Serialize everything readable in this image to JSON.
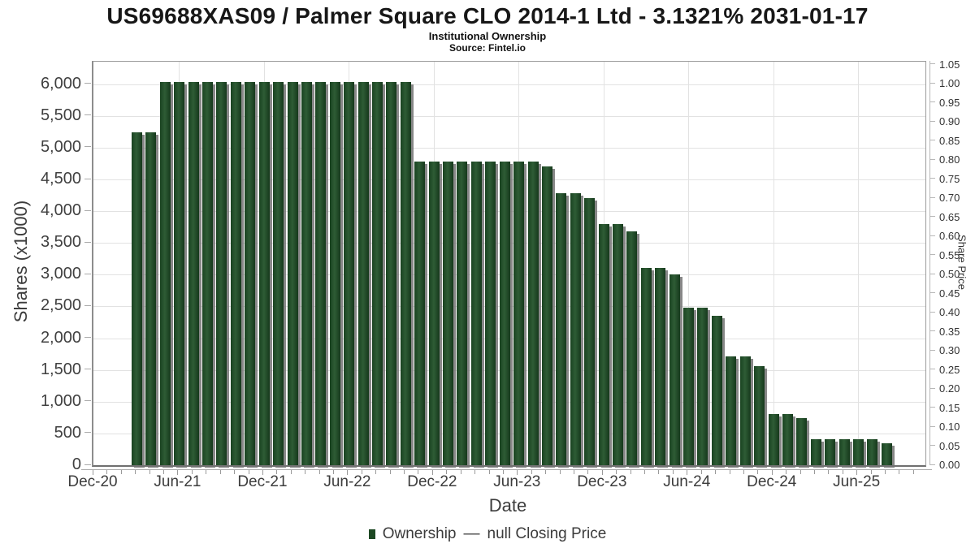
{
  "header": {
    "title": "US69688XAS09 / Palmer Square CLO 2014-1 Ltd - 3.1321% 2031-01-17",
    "subtitle": "Institutional Ownership",
    "source": "Source: Fintel.io"
  },
  "chart_data": {
    "type": "bar",
    "title": "US69688XAS09 / Palmer Square CLO 2014-1 Ltd - 3.1321% 2031-01-17",
    "subtitle": "Institutional Ownership",
    "series": [
      {
        "name": "Ownership",
        "x": [
          "Mar-21",
          "Apr-21",
          "May-21",
          "Jun-21",
          "Jul-21",
          "Aug-21",
          "Sep-21",
          "Oct-21",
          "Nov-21",
          "Dec-21",
          "Jan-22",
          "Feb-22",
          "Mar-22",
          "Apr-22",
          "May-22",
          "Jun-22",
          "Jul-22",
          "Aug-22",
          "Sep-22",
          "Oct-22",
          "Nov-22",
          "Dec-22",
          "Jan-23",
          "Feb-23",
          "Mar-23",
          "Apr-23",
          "May-23",
          "Jun-23",
          "Jul-23",
          "Aug-23",
          "Sep-23",
          "Oct-23",
          "Nov-23",
          "Dec-23",
          "Jan-24",
          "Feb-24",
          "Mar-24",
          "Apr-24",
          "May-24",
          "Jun-24",
          "Jul-24",
          "Aug-24",
          "Sep-24",
          "Oct-24",
          "Nov-24",
          "Dec-24",
          "Jan-25",
          "Feb-25",
          "Mar-25",
          "Apr-25",
          "May-25",
          "Jun-25",
          "Jul-25",
          "Aug-25"
        ],
        "values": [
          5240,
          5240,
          6040,
          6040,
          6040,
          6040,
          6040,
          6040,
          6040,
          6040,
          6040,
          6040,
          6040,
          6040,
          6040,
          6040,
          6040,
          6040,
          6040,
          6040,
          4780,
          4780,
          4780,
          4780,
          4780,
          4780,
          4780,
          4780,
          4780,
          4700,
          4290,
          4290,
          4210,
          3800,
          3800,
          3680,
          3110,
          3110,
          3000,
          2480,
          2480,
          2350,
          1710,
          1710,
          1560,
          810,
          810,
          740,
          415,
          415,
          415,
          415,
          415,
          340
        ]
      },
      {
        "name": "null Closing Price",
        "x": [],
        "values": []
      }
    ],
    "xlabel": "Date",
    "ylabel": "Shares (x1000)",
    "ylabel_right": "Share Price",
    "ylim_left": [
      0,
      6355
    ],
    "ylim_right": [
      0,
      1.05
    ],
    "grid": true,
    "legend_position": "bottom"
  },
  "axes": {
    "left": {
      "title": "Shares (x1000)",
      "tick_labels": [
        "0",
        "500",
        "1,000",
        "1,500",
        "2,000",
        "2,500",
        "3,000",
        "3,500",
        "4,000",
        "4,500",
        "5,000",
        "5,500",
        "6,000"
      ],
      "tick_values": [
        0,
        500,
        1000,
        1500,
        2000,
        2500,
        3000,
        3500,
        4000,
        4500,
        5000,
        5500,
        6000
      ]
    },
    "right": {
      "title": "Share Price",
      "tick_labels": [
        "0.00",
        "0.05",
        "0.10",
        "0.15",
        "0.20",
        "0.25",
        "0.30",
        "0.35",
        "0.40",
        "0.45",
        "0.50",
        "0.55",
        "0.60",
        "0.65",
        "0.70",
        "0.75",
        "0.80",
        "0.85",
        "0.90",
        "0.95",
        "1.00",
        "1.05"
      ]
    },
    "x": {
      "title": "Date",
      "tick_labels": [
        "Dec-20",
        "Jun-21",
        "Dec-21",
        "Jun-22",
        "Dec-22",
        "Jun-23",
        "Dec-23",
        "Jun-24",
        "Dec-24",
        "Jun-25"
      ]
    }
  },
  "legend": {
    "ownership_label": "Ownership",
    "separator": "—",
    "price_label": "null Closing Price"
  },
  "colors": {
    "bar": "#1d4823",
    "bar_light": "#2e5c35",
    "bar_dark": "#16391c",
    "bar_shadow": "#737373",
    "grid": "#e2e2e2",
    "axis": "#9a9a9a",
    "text": "#3c3c3c"
  }
}
